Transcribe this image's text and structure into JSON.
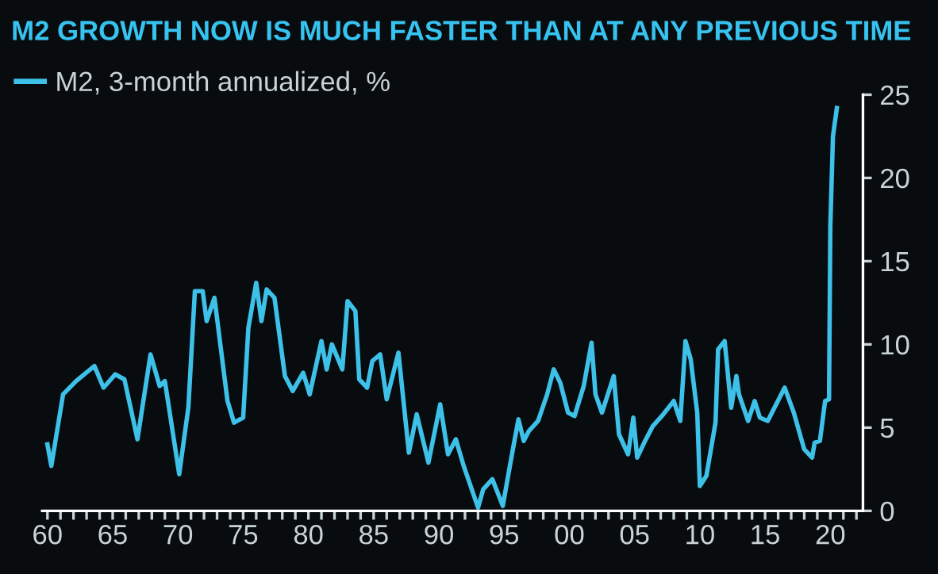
{
  "chart_data": {
    "type": "line",
    "title": "M2 GROWTH NOW IS MUCH FASTER THAN AT ANY PREVIOUS TIME",
    "series": [
      {
        "name": "M2, 3-month annualized, %",
        "color": "#3ec1e8",
        "x": [
          1960.0,
          1960.3,
          1961.2,
          1962.2,
          1963.6,
          1964.3,
          1965.2,
          1965.9,
          1966.9,
          1967.9,
          1968.6,
          1969.0,
          1970.1,
          1970.8,
          1971.3,
          1971.9,
          1972.2,
          1972.8,
          1973.8,
          1974.3,
          1975.0,
          1975.4,
          1976.0,
          1976.4,
          1976.8,
          1977.4,
          1978.2,
          1978.8,
          1979.6,
          1980.1,
          1981.0,
          1981.4,
          1981.8,
          1982.6,
          1983.0,
          1983.6,
          1983.9,
          1984.5,
          1984.9,
          1985.5,
          1986.0,
          1986.9,
          1987.7,
          1988.3,
          1989.2,
          1990.1,
          1990.7,
          1991.3,
          1991.9,
          1993.0,
          1993.4,
          1994.1,
          1994.9,
          1995.6,
          1996.1,
          1996.5,
          1996.9,
          1997.6,
          1998.3,
          1998.8,
          1999.3,
          1999.9,
          2000.4,
          2001.1,
          2001.7,
          2002.0,
          2002.5,
          2003.4,
          2003.8,
          2004.5,
          2004.9,
          2005.2,
          2005.8,
          2006.4,
          2007.2,
          2008.0,
          2008.5,
          2008.9,
          2009.3,
          2009.8,
          2010.0,
          2010.5,
          2011.2,
          2011.4,
          2011.9,
          2012.4,
          2012.8,
          2013.0,
          2013.7,
          2014.2,
          2014.6,
          2015.2,
          2016.5,
          2017.2,
          2018.0,
          2018.6,
          2018.8,
          2019.2,
          2019.6,
          2019.9,
          2020.0,
          2020.2,
          2020.5
        ],
        "values": [
          4.0,
          2.7,
          7.0,
          7.8,
          8.7,
          7.4,
          8.2,
          7.9,
          4.3,
          9.4,
          7.5,
          7.8,
          2.2,
          6.2,
          13.2,
          13.2,
          11.4,
          12.8,
          6.6,
          5.3,
          5.6,
          11.0,
          13.7,
          11.4,
          13.3,
          12.8,
          8.1,
          7.2,
          8.3,
          7.0,
          10.2,
          8.5,
          10.0,
          8.5,
          12.6,
          12.0,
          7.9,
          7.4,
          9.0,
          9.4,
          6.7,
          9.5,
          3.5,
          5.8,
          2.9,
          6.4,
          3.4,
          4.3,
          2.7,
          0.2,
          1.3,
          1.9,
          0.3,
          3.4,
          5.5,
          4.2,
          4.8,
          5.4,
          7.0,
          8.5,
          7.7,
          5.9,
          5.7,
          7.5,
          10.1,
          7.0,
          5.9,
          8.1,
          4.6,
          3.4,
          5.6,
          3.2,
          4.2,
          5.1,
          5.8,
          6.6,
          5.4,
          10.2,
          9.1,
          5.9,
          1.5,
          2.1,
          5.3,
          9.7,
          10.2,
          6.2,
          8.1,
          7.0,
          5.4,
          6.6,
          5.6,
          5.4,
          7.4,
          5.9,
          3.7,
          3.2,
          4.1,
          4.2,
          6.6,
          6.7,
          17.1,
          22.5,
          24.2
        ]
      }
    ],
    "xlim": [
      1959.6,
      2022.5
    ],
    "xticks": [
      {
        "value": 1960,
        "label": "60"
      },
      {
        "value": 1961,
        "label": null
      },
      {
        "value": 1962,
        "label": null
      },
      {
        "value": 1963,
        "label": null
      },
      {
        "value": 1964,
        "label": null
      },
      {
        "value": 1965,
        "label": "65"
      },
      {
        "value": 1966,
        "label": null
      },
      {
        "value": 1967,
        "label": null
      },
      {
        "value": 1968,
        "label": null
      },
      {
        "value": 1969,
        "label": null
      },
      {
        "value": 1970,
        "label": "70"
      },
      {
        "value": 1971,
        "label": null
      },
      {
        "value": 1972,
        "label": null
      },
      {
        "value": 1973,
        "label": null
      },
      {
        "value": 1974,
        "label": null
      },
      {
        "value": 1975,
        "label": "75"
      },
      {
        "value": 1976,
        "label": null
      },
      {
        "value": 1977,
        "label": null
      },
      {
        "value": 1978,
        "label": null
      },
      {
        "value": 1979,
        "label": null
      },
      {
        "value": 1980,
        "label": "80"
      },
      {
        "value": 1981,
        "label": null
      },
      {
        "value": 1982,
        "label": null
      },
      {
        "value": 1983,
        "label": null
      },
      {
        "value": 1984,
        "label": null
      },
      {
        "value": 1985,
        "label": "85"
      },
      {
        "value": 1986,
        "label": null
      },
      {
        "value": 1987,
        "label": null
      },
      {
        "value": 1988,
        "label": null
      },
      {
        "value": 1989,
        "label": null
      },
      {
        "value": 1990,
        "label": "90"
      },
      {
        "value": 1991,
        "label": null
      },
      {
        "value": 1992,
        "label": null
      },
      {
        "value": 1993,
        "label": null
      },
      {
        "value": 1994,
        "label": null
      },
      {
        "value": 1995,
        "label": "95"
      },
      {
        "value": 1996,
        "label": null
      },
      {
        "value": 1997,
        "label": null
      },
      {
        "value": 1998,
        "label": null
      },
      {
        "value": 1999,
        "label": null
      },
      {
        "value": 2000,
        "label": "00"
      },
      {
        "value": 2001,
        "label": null
      },
      {
        "value": 2002,
        "label": null
      },
      {
        "value": 2003,
        "label": null
      },
      {
        "value": 2004,
        "label": null
      },
      {
        "value": 2005,
        "label": "05"
      },
      {
        "value": 2006,
        "label": null
      },
      {
        "value": 2007,
        "label": null
      },
      {
        "value": 2008,
        "label": null
      },
      {
        "value": 2009,
        "label": null
      },
      {
        "value": 2010,
        "label": "10"
      },
      {
        "value": 2011,
        "label": null
      },
      {
        "value": 2012,
        "label": null
      },
      {
        "value": 2013,
        "label": null
      },
      {
        "value": 2014,
        "label": null
      },
      {
        "value": 2015,
        "label": "15"
      },
      {
        "value": 2016,
        "label": null
      },
      {
        "value": 2017,
        "label": null
      },
      {
        "value": 2018,
        "label": null
      },
      {
        "value": 2019,
        "label": null
      },
      {
        "value": 2020,
        "label": "20"
      },
      {
        "value": 2021,
        "label": null
      },
      {
        "value": 2022,
        "label": null
      }
    ],
    "ylim": [
      0,
      25
    ],
    "yticks": [
      0,
      5,
      10,
      15,
      20,
      25
    ],
    "grid": false,
    "legend": "top left",
    "marker": "none",
    "line_style": "solid"
  }
}
